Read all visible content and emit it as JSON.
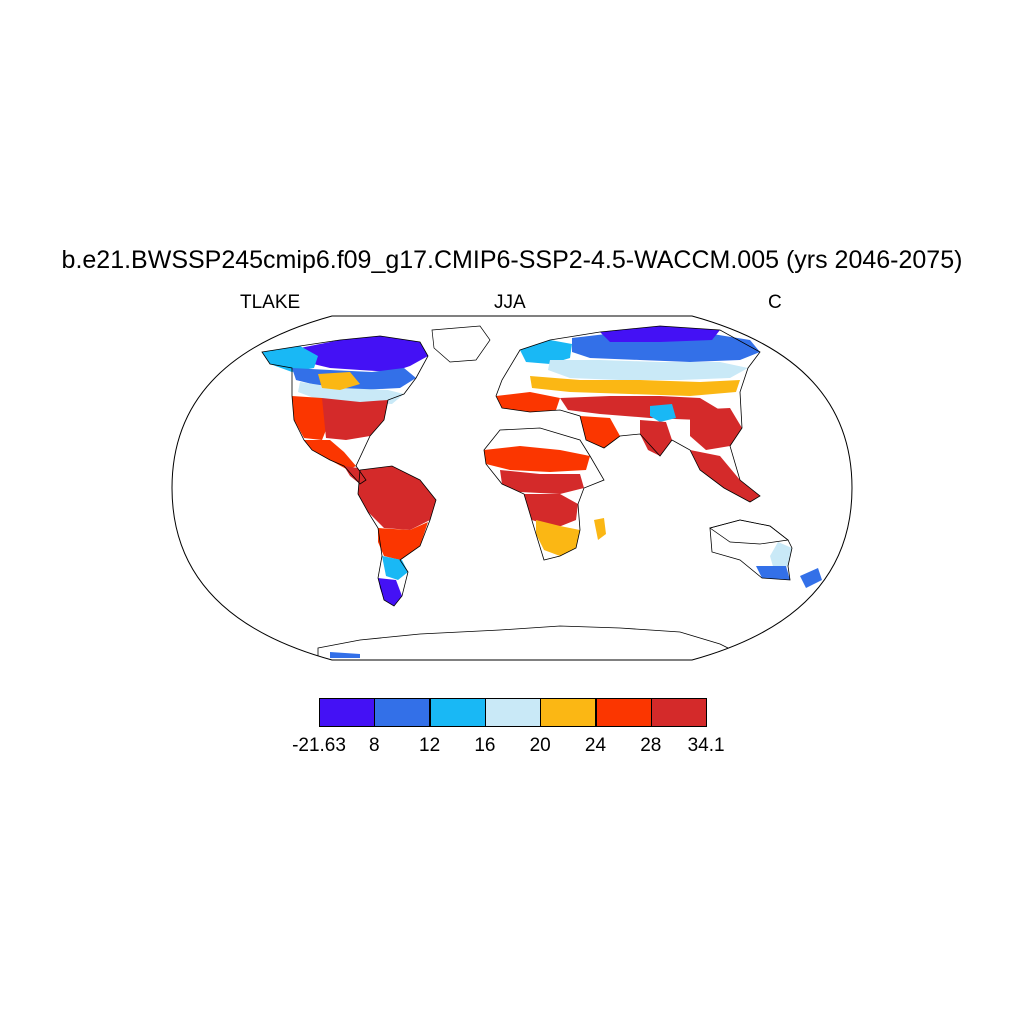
{
  "title": "b.e21.BWSSP245cmip6.f09_g17.CMIP6-SSP2-4.5-WACCM.005 (yrs 2046-2075)",
  "left_label": "TLAKE",
  "center_label": "JJA",
  "right_label": "C",
  "colorbar": {
    "colors": [
      "#4411f5",
      "#3370e8",
      "#19b8f5",
      "#c9e9f7",
      "#fbb714",
      "#fb3600",
      "#d42a2a"
    ],
    "labels": [
      "-21.63",
      "8",
      "12",
      "16",
      "20",
      "24",
      "28",
      "34.1"
    ]
  }
}
